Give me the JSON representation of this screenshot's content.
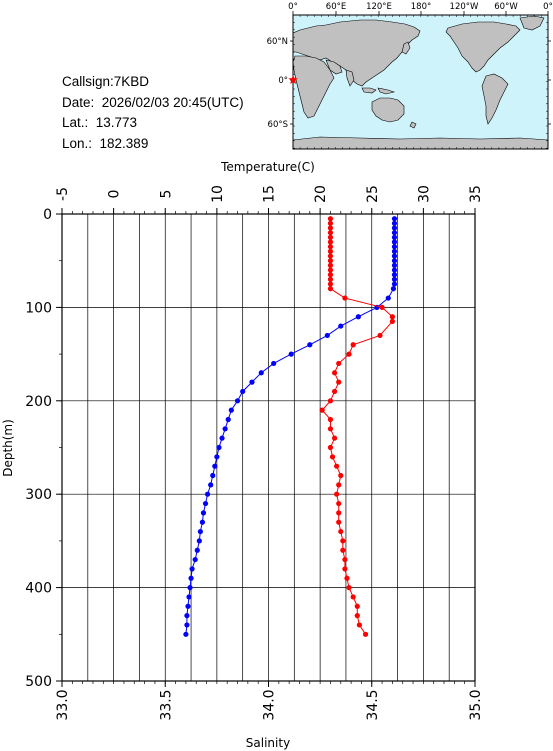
{
  "info": {
    "callsign": "Callsign:7KBD",
    "date": "Date:  2026/02/03 20:45(UTC)",
    "lat": "Lat.:  13.773",
    "lon": "Lon.:  182.389"
  },
  "map": {
    "top_ticks": [
      "0°",
      "60°E",
      "120°E",
      "180°",
      "120°W",
      "60°W",
      "0°"
    ],
    "lat_ticks": [
      "60°N",
      "0°",
      "60°S"
    ],
    "station_color": "#ff0000",
    "ocean_color": "#cff3fb",
    "land_color": "#c0c0c0"
  },
  "chart_data": {
    "type": "line",
    "xlabel_top": "Temperature(C)",
    "xlabel_bottom": "Salinity",
    "ylabel": "Depth(m)",
    "temperature_range": [
      -5,
      35
    ],
    "salinity_range": [
      33.0,
      35.0
    ],
    "depth_range": [
      0,
      500
    ],
    "temperature_ticks": [
      "-5",
      "0",
      "5",
      "10",
      "15",
      "20",
      "25",
      "30",
      "35"
    ],
    "salinity_ticks": [
      "33.0",
      "33.5",
      "34.0",
      "34.5",
      "35.0"
    ],
    "depth_ticks": [
      "0",
      "100",
      "200",
      "300",
      "400",
      "500"
    ],
    "grid": true,
    "series": [
      {
        "key": "temperature",
        "axis": "top",
        "color": "#0000ff",
        "points": [
          [
            27.2,
            5
          ],
          [
            27.2,
            10
          ],
          [
            27.2,
            15
          ],
          [
            27.2,
            20
          ],
          [
            27.2,
            25
          ],
          [
            27.2,
            30
          ],
          [
            27.2,
            35
          ],
          [
            27.2,
            40
          ],
          [
            27.2,
            45
          ],
          [
            27.2,
            50
          ],
          [
            27.2,
            55
          ],
          [
            27.2,
            60
          ],
          [
            27.2,
            65
          ],
          [
            27.2,
            70
          ],
          [
            27.2,
            75
          ],
          [
            27.1,
            80
          ],
          [
            26.6,
            90
          ],
          [
            25.5,
            100
          ],
          [
            23.7,
            110
          ],
          [
            22.0,
            120
          ],
          [
            20.7,
            130
          ],
          [
            19.0,
            140
          ],
          [
            17.2,
            150
          ],
          [
            15.5,
            160
          ],
          [
            14.3,
            170
          ],
          [
            13.4,
            180
          ],
          [
            12.5,
            190
          ],
          [
            12.0,
            200
          ],
          [
            11.4,
            210
          ],
          [
            11.1,
            220
          ],
          [
            10.8,
            230
          ],
          [
            10.5,
            240
          ],
          [
            10.2,
            250
          ],
          [
            10.0,
            260
          ],
          [
            9.8,
            270
          ],
          [
            9.6,
            280
          ],
          [
            9.4,
            290
          ],
          [
            9.1,
            300
          ],
          [
            8.9,
            310
          ],
          [
            8.7,
            320
          ],
          [
            8.6,
            330
          ],
          [
            8.4,
            340
          ],
          [
            8.3,
            350
          ],
          [
            8.1,
            360
          ],
          [
            7.9,
            370
          ],
          [
            7.6,
            380
          ],
          [
            7.5,
            390
          ],
          [
            7.4,
            400
          ],
          [
            7.3,
            410
          ],
          [
            7.2,
            420
          ],
          [
            7.1,
            430
          ],
          [
            7.1,
            440
          ],
          [
            7.0,
            450
          ]
        ]
      },
      {
        "key": "salinity",
        "axis": "bottom",
        "color": "#ff0000",
        "points": [
          [
            34.3,
            5
          ],
          [
            34.3,
            10
          ],
          [
            34.3,
            15
          ],
          [
            34.3,
            20
          ],
          [
            34.3,
            25
          ],
          [
            34.3,
            30
          ],
          [
            34.3,
            35
          ],
          [
            34.3,
            40
          ],
          [
            34.3,
            45
          ],
          [
            34.3,
            50
          ],
          [
            34.3,
            55
          ],
          [
            34.3,
            60
          ],
          [
            34.3,
            65
          ],
          [
            34.3,
            70
          ],
          [
            34.3,
            75
          ],
          [
            34.3,
            80
          ],
          [
            34.37,
            90
          ],
          [
            34.55,
            100
          ],
          [
            34.6,
            110
          ],
          [
            34.6,
            115
          ],
          [
            34.54,
            130
          ],
          [
            34.41,
            140
          ],
          [
            34.39,
            150
          ],
          [
            34.34,
            160
          ],
          [
            34.32,
            170
          ],
          [
            34.34,
            180
          ],
          [
            34.32,
            190
          ],
          [
            34.3,
            200
          ],
          [
            34.26,
            210
          ],
          [
            34.3,
            220
          ],
          [
            34.3,
            230
          ],
          [
            34.32,
            240
          ],
          [
            34.3,
            250
          ],
          [
            34.31,
            260
          ],
          [
            34.33,
            270
          ],
          [
            34.35,
            280
          ],
          [
            34.34,
            290
          ],
          [
            34.33,
            300
          ],
          [
            34.34,
            310
          ],
          [
            34.34,
            320
          ],
          [
            34.34,
            330
          ],
          [
            34.35,
            340
          ],
          [
            34.36,
            350
          ],
          [
            34.36,
            360
          ],
          [
            34.37,
            370
          ],
          [
            34.37,
            380
          ],
          [
            34.38,
            390
          ],
          [
            34.39,
            400
          ],
          [
            34.41,
            410
          ],
          [
            34.43,
            420
          ],
          [
            34.43,
            430
          ],
          [
            34.44,
            440
          ],
          [
            34.47,
            450
          ]
        ]
      }
    ]
  }
}
